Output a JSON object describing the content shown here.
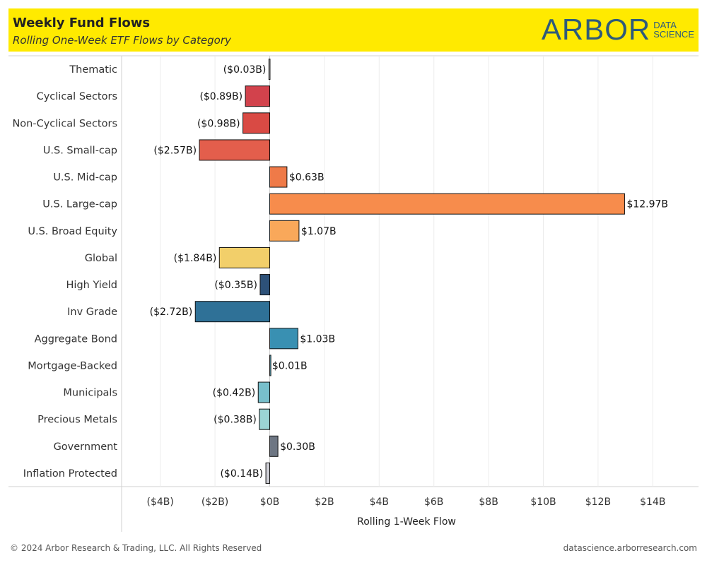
{
  "header": {
    "title": "Weekly Fund Flows",
    "subtitle": "Rolling One-Week ETF Flows by Category",
    "logo_main": "ARBOR",
    "logo_sub_1": "DATA",
    "logo_sub_2": "SCIENCE"
  },
  "footer": {
    "copyright": "© 2024 Arbor Research & Trading, LLC. All Rights Reserved",
    "url": "datascience.arborresearch.com"
  },
  "colors": {
    "header_bg": "#ffea00",
    "logo": "#2e5a7a"
  },
  "chart_data": {
    "type": "bar",
    "orientation": "horizontal",
    "title": "Weekly Fund Flows",
    "subtitle": "Rolling One-Week ETF Flows by Category",
    "xlabel": "Rolling 1-Week Flow",
    "ylabel": "",
    "xlim": [
      -5,
      15
    ],
    "xticks": [
      -4,
      -2,
      0,
      2,
      4,
      6,
      8,
      10,
      12,
      14
    ],
    "xtick_labels": [
      "($4B)",
      "($2B)",
      "$0B",
      "$2B",
      "$4B",
      "$6B",
      "$8B",
      "$10B",
      "$12B",
      "$14B"
    ],
    "grid": true,
    "categories": [
      "Thematic",
      "Cyclical Sectors",
      "Non-Cyclical Sectors",
      "U.S. Small-cap",
      "U.S. Mid-cap",
      "U.S. Large-cap",
      "U.S. Broad Equity",
      "Global",
      "High Yield",
      "Inv Grade",
      "Aggregate Bond",
      "Mortgage-Backed",
      "Municipals",
      "Precious Metals",
      "Government",
      "Inflation Protected"
    ],
    "values": [
      -0.03,
      -0.89,
      -0.98,
      -2.57,
      0.63,
      12.97,
      1.07,
      -1.84,
      -0.35,
      -2.72,
      1.03,
      0.01,
      -0.42,
      -0.38,
      0.3,
      -0.14
    ],
    "labels": [
      "($0.03B)",
      "($0.89B)",
      "($0.98B)",
      "($2.57B)",
      "$0.63B",
      "$12.97B",
      "$1.07B",
      "($1.84B)",
      "($0.35B)",
      "($2.72B)",
      "$1.03B",
      "$0.01B",
      "($0.42B)",
      "($0.38B)",
      "$0.30B",
      "($0.14B)"
    ],
    "bar_colors": [
      "#e0e0e0",
      "#d2424c",
      "#d94a44",
      "#e35e4c",
      "#ef7a48",
      "#f78c4c",
      "#f9a85a",
      "#f2cf6a",
      "#2d5179",
      "#2f7197",
      "#3990b2",
      "#5aa7ba",
      "#78bfcb",
      "#9bd4d4",
      "#6d7683",
      "#cfcfd6"
    ]
  }
}
